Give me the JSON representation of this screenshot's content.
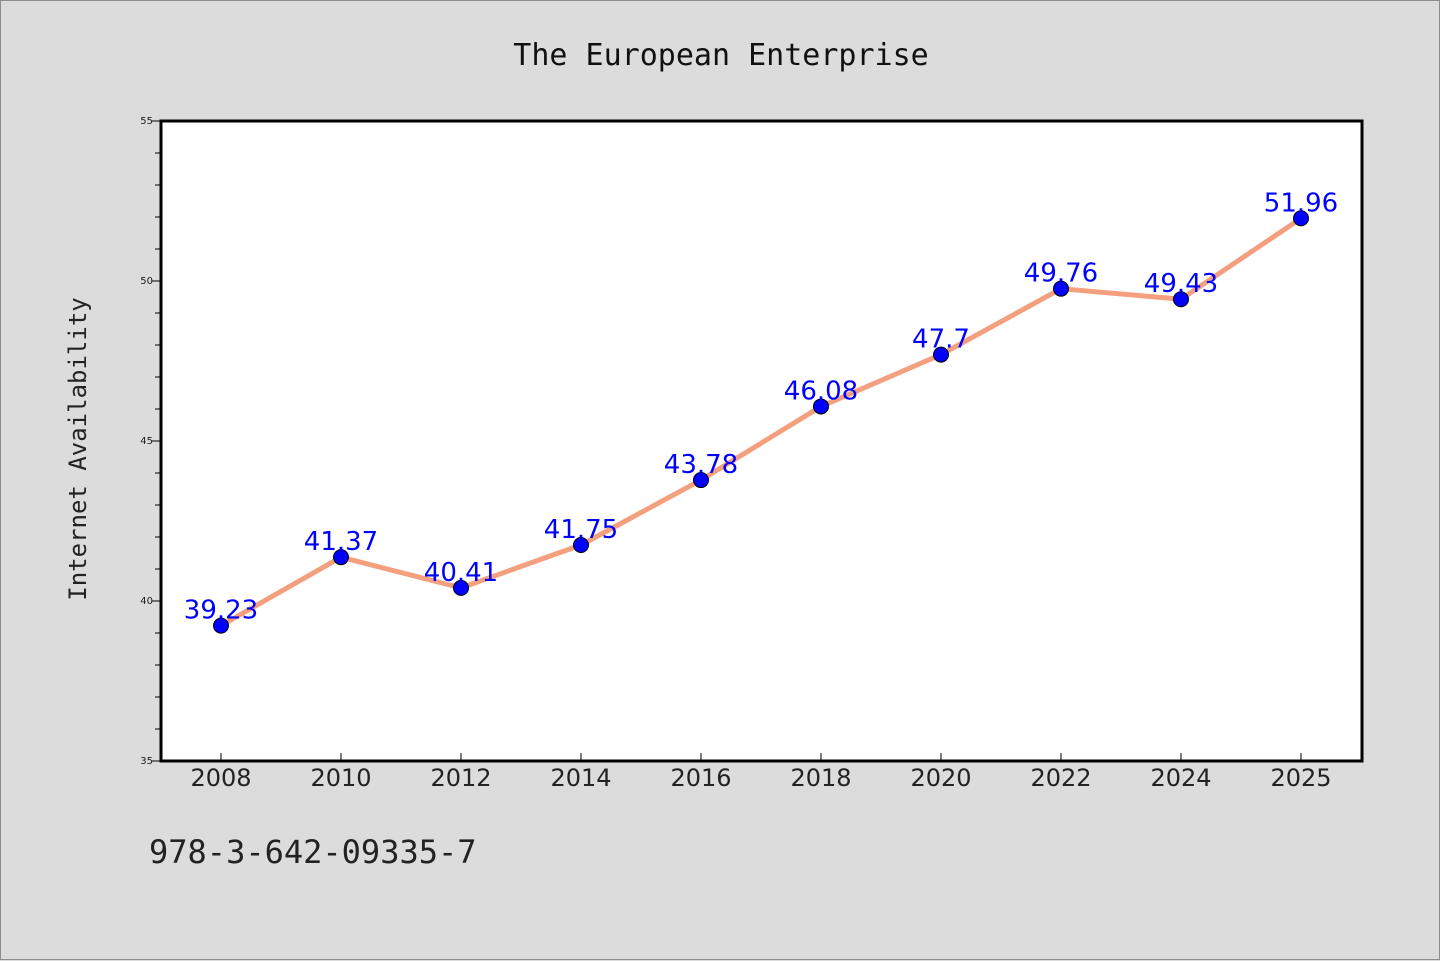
{
  "chart_data": {
    "type": "line",
    "title": "The European Enterprise",
    "xlabel": "",
    "ylabel": "Internet Availability",
    "categories": [
      "2008",
      "2010",
      "2012",
      "2014",
      "2016",
      "2018",
      "2020",
      "2022",
      "2024",
      "2025"
    ],
    "series": [
      {
        "values": [
          39.23,
          41.37,
          40.41,
          41.75,
          43.78,
          46.08,
          47.7,
          49.76,
          49.43,
          51.96
        ],
        "line_color": "#f4a07e",
        "marker_color": "#0000ff"
      }
    ],
    "data_labels": [
      "39.23",
      "41.37",
      "40.41",
      "41.75",
      "43.78",
      "46.08",
      "47.7",
      "49.76",
      "49.43",
      "51.96"
    ],
    "ylim": [
      35,
      55
    ],
    "yticks": [
      35,
      40,
      45,
      50,
      55
    ],
    "grid": false,
    "legend": "none"
  },
  "footnote": "978-3-642-09335-7"
}
